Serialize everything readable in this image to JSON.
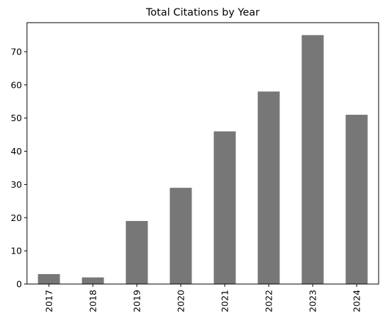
{
  "chart_data": {
    "type": "bar",
    "title": "Total Citations by Year",
    "xlabel": "",
    "ylabel": "",
    "categories": [
      "2017",
      "2018",
      "2019",
      "2020",
      "2021",
      "2022",
      "2023",
      "2024"
    ],
    "values": [
      3,
      2,
      19,
      29,
      46,
      58,
      75,
      51
    ],
    "ylim": [
      0,
      78.75
    ],
    "yticks": [
      0,
      10,
      20,
      30,
      40,
      50,
      60,
      70
    ],
    "grid": false,
    "legend": "none",
    "bar_color": "#777777",
    "xtick_rotation": "vertical"
  }
}
